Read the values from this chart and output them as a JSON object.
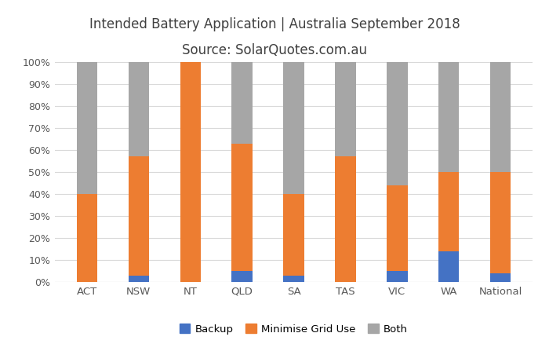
{
  "categories": [
    "ACT",
    "NSW",
    "NT",
    "QLD",
    "SA",
    "TAS",
    "VIC",
    "WA",
    "National"
  ],
  "backup": [
    0,
    3,
    0,
    5,
    3,
    0,
    5,
    14,
    4
  ],
  "minimise": [
    40,
    54,
    100,
    58,
    37,
    57,
    39,
    36,
    46
  ],
  "both": [
    60,
    43,
    0,
    37,
    60,
    43,
    56,
    50,
    50
  ],
  "color_backup": "#4472C4",
  "color_minimise": "#ED7D31",
  "color_both": "#A6A6A6",
  "title_line1": "Intended Battery Application | Australia September 2018",
  "title_line2": "Source: SolarQuotes.com.au",
  "ylabel_ticks": [
    "0%",
    "10%",
    "20%",
    "30%",
    "40%",
    "50%",
    "60%",
    "70%",
    "80%",
    "90%",
    "100%"
  ],
  "ylabel_vals": [
    0,
    10,
    20,
    30,
    40,
    50,
    60,
    70,
    80,
    90,
    100
  ],
  "legend_labels": [
    "Backup",
    "Minimise Grid Use",
    "Both"
  ],
  "background_color": "#FFFFFF",
  "grid_color": "#D9D9D9",
  "title_color": "#404040",
  "tick_color": "#595959",
  "bar_width": 0.4
}
